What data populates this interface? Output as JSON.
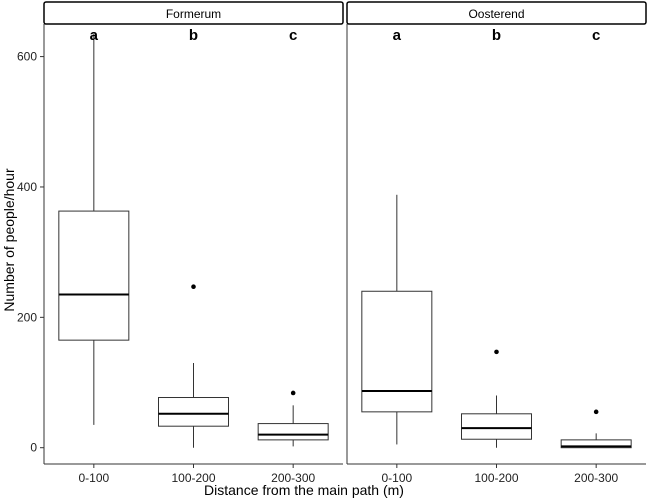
{
  "chart_data": {
    "type": "boxplot",
    "title": "",
    "xlabel": "Distance from the main path (m)",
    "ylabel": "Number of people/hour",
    "ylim": [
      -25,
      650
    ],
    "y_ticks": [
      0,
      200,
      400,
      600
    ],
    "categories": [
      "0-100",
      "100-200",
      "200-300"
    ],
    "grid": false,
    "panels": [
      {
        "name": "Formerum",
        "letters": [
          "a",
          "b",
          "c"
        ],
        "boxes": [
          {
            "category": "0-100",
            "whisker_low": 35,
            "q1": 165,
            "median": 235,
            "q3": 363,
            "whisker_high": 635,
            "outliers": []
          },
          {
            "category": "100-200",
            "whisker_low": 0,
            "q1": 33,
            "median": 52,
            "q3": 77,
            "whisker_high": 130,
            "outliers": [
              247
            ]
          },
          {
            "category": "200-300",
            "whisker_low": 2,
            "q1": 12,
            "median": 20,
            "q3": 37,
            "whisker_high": 65,
            "outliers": [
              84
            ]
          }
        ]
      },
      {
        "name": "Oosterend",
        "letters": [
          "a",
          "b",
          "c"
        ],
        "boxes": [
          {
            "category": "0-100",
            "whisker_low": 5,
            "q1": 55,
            "median": 87,
            "q3": 240,
            "whisker_high": 388,
            "outliers": []
          },
          {
            "category": "100-200",
            "whisker_low": 0,
            "q1": 13,
            "median": 30,
            "q3": 52,
            "whisker_high": 80,
            "outliers": [
              147
            ]
          },
          {
            "category": "200-300",
            "whisker_low": 0,
            "q1": 0,
            "median": 2,
            "q3": 12,
            "whisker_high": 22,
            "outliers": [
              55
            ]
          }
        ]
      }
    ]
  }
}
